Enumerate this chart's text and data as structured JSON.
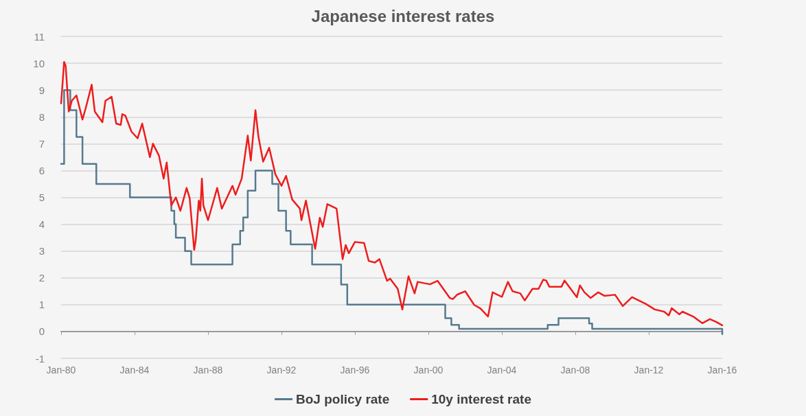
{
  "chart_data": {
    "type": "line",
    "title": "Japanese interest rates",
    "xlim": [
      "1980-01",
      "2016-01"
    ],
    "xticks": [
      {
        "value": "1980-01",
        "label": "Jan-80"
      },
      {
        "value": "1984-01",
        "label": "Jan-84"
      },
      {
        "value": "1988-01",
        "label": "Jan-88"
      },
      {
        "value": "1992-01",
        "label": "Jan-92"
      },
      {
        "value": "1996-01",
        "label": "Jan-96"
      },
      {
        "value": "2000-01",
        "label": "Jan-00"
      },
      {
        "value": "2004-01",
        "label": "Jan-04"
      },
      {
        "value": "2008-01",
        "label": "Jan-08"
      },
      {
        "value": "2012-01",
        "label": "Jan-12"
      },
      {
        "value": "2016-01",
        "label": "Jan-16"
      }
    ],
    "ylim": [
      -1,
      11
    ],
    "yticks": [
      -1,
      0,
      1,
      2,
      3,
      4,
      5,
      6,
      7,
      8,
      9,
      10,
      11
    ],
    "grid": "y",
    "legend": "bottom",
    "marker": "none",
    "line_style": "solid",
    "series": [
      {
        "name": "BoJ policy rate",
        "type": "step",
        "color": "#557a8e",
        "x": [
          "1980-01",
          "1980-03",
          "1980-07",
          "1980-11",
          "1981-03",
          "1981-12",
          "1983-10",
          "1986-01",
          "1986-03",
          "1986-04",
          "1986-10",
          "1987-02",
          "1989-05",
          "1989-10",
          "1989-12",
          "1990-03",
          "1990-08",
          "1991-07",
          "1991-11",
          "1992-04",
          "1992-07",
          "1993-09",
          "1995-04",
          "1995-08",
          "2000-12",
          "2001-04",
          "2001-09",
          "2006-07",
          "2007-02",
          "2008-10",
          "2008-12",
          "2016-01"
        ],
        "values": [
          6.25,
          9,
          8.25,
          7.25,
          6.25,
          5.5,
          5,
          4.5,
          4,
          3.5,
          3,
          2.5,
          3.25,
          3.75,
          4.25,
          5.25,
          6,
          5.5,
          4.5,
          3.75,
          3.25,
          2.5,
          1.75,
          1,
          0.5,
          0.25,
          0.1,
          0.25,
          0.5,
          0.3,
          0.1,
          -0.1
        ]
      },
      {
        "name": "10y interest rate",
        "color": "#ee1c1c",
        "x": [
          "1980-01",
          "1980-03",
          "1980-04",
          "1980-06",
          "1980-08",
          "1980-11",
          "1981-03",
          "1981-05",
          "1981-09",
          "1981-11",
          "1982-04",
          "1982-06",
          "1982-10",
          "1983-01",
          "1983-04",
          "1983-05",
          "1983-07",
          "1983-11",
          "1984-03",
          "1984-06",
          "1984-11",
          "1985-01",
          "1985-05",
          "1985-08",
          "1985-10",
          "1986-01",
          "1986-04",
          "1986-07",
          "1986-11",
          "1987-01",
          "1987-04",
          "1987-05",
          "1987-07",
          "1987-08",
          "1987-09",
          "1987-10",
          "1988-01",
          "1988-07",
          "1988-10",
          "1989-05",
          "1989-07",
          "1989-11",
          "1990-03",
          "1990-05",
          "1990-08",
          "1990-10",
          "1991-01",
          "1991-05",
          "1991-09",
          "1992-01",
          "1992-04",
          "1992-08",
          "1993-01",
          "1993-02",
          "1993-05",
          "1993-11",
          "1994-02",
          "1994-04",
          "1994-07",
          "1995-01",
          "1995-05",
          "1995-07",
          "1995-09",
          "1996-01",
          "1996-07",
          "1996-10",
          "1997-02",
          "1997-05",
          "1997-10",
          "1997-12",
          "1998-05",
          "1998-08",
          "1998-12",
          "1999-04",
          "1999-06",
          "2000-02",
          "2000-07",
          "2001-03",
          "2001-05",
          "2001-08",
          "2002-01",
          "2002-07",
          "2002-11",
          "2003-04",
          "2003-07",
          "2004-01",
          "2004-05",
          "2004-08",
          "2005-01",
          "2005-04",
          "2005-09",
          "2006-01",
          "2006-04",
          "2006-06",
          "2006-08",
          "2007-04",
          "2007-06",
          "2008-02",
          "2008-04",
          "2008-07",
          "2008-11",
          "2009-04",
          "2009-08",
          "2010-03",
          "2010-08",
          "2011-02",
          "2011-11",
          "2012-05",
          "2012-11",
          "2013-02",
          "2013-04",
          "2013-09",
          "2013-11",
          "2014-06",
          "2014-12",
          "2015-05",
          "2015-09",
          "2016-01"
        ],
        "values": [
          8.5,
          10.05,
          9.9,
          8.2,
          8.6,
          8.8,
          7.9,
          8.3,
          9.2,
          8.2,
          7.8,
          8.6,
          8.75,
          7.75,
          7.7,
          8.1,
          8.05,
          7.45,
          7.2,
          7.75,
          6.5,
          7,
          6.55,
          5.7,
          6.3,
          4.7,
          5,
          4.5,
          5.35,
          4.97,
          3.04,
          3.4,
          4.88,
          4.5,
          5.7,
          4.7,
          4.15,
          5.35,
          4.58,
          5.43,
          5.1,
          5.7,
          7.3,
          6.37,
          8.25,
          7.25,
          6.33,
          6.85,
          5.86,
          5.43,
          5.8,
          4.92,
          4.58,
          4.15,
          4.88,
          3.08,
          4.24,
          3.9,
          4.75,
          4.58,
          2.7,
          3.22,
          2.92,
          3.34,
          3.3,
          2.63,
          2.57,
          2.7,
          1.89,
          1.97,
          1.59,
          0.82,
          2.06,
          1.42,
          1.85,
          1.76,
          1.89,
          1.25,
          1.21,
          1.38,
          1.5,
          0.99,
          0.86,
          0.56,
          1.46,
          1.29,
          1.85,
          1.5,
          1.42,
          1.16,
          1.59,
          1.59,
          1.93,
          1.9,
          1.67,
          1.67,
          1.9,
          1.28,
          1.72,
          1.46,
          1.25,
          1.46,
          1.33,
          1.37,
          0.95,
          1.28,
          1.03,
          0.82,
          0.74,
          0.6,
          0.87,
          0.64,
          0.74,
          0.56,
          0.31,
          0.46,
          0.36,
          0.23
        ]
      }
    ]
  }
}
